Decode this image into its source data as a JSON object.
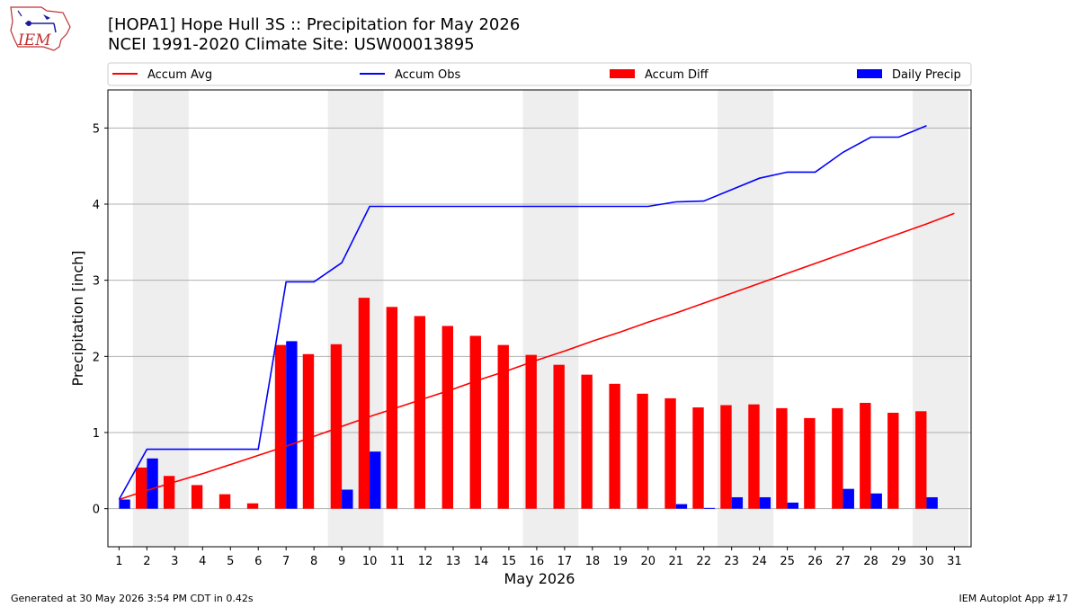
{
  "header": {
    "title_line1": "[HOPA1] Hope Hull 3S :: Precipitation for May 2026",
    "title_line2": "NCEI 1991-2020 Climate Site: USW00013895",
    "logo_text": "IEM"
  },
  "footer": {
    "left": "Generated at 30 May 2026 3:54 PM CDT in 0.42s",
    "right": "IEM Autoplot App #17"
  },
  "colors": {
    "accum_avg": "#ff0000",
    "accum_obs": "#0000ff",
    "accum_diff": "#ff0000",
    "daily_precip": "#0000ff",
    "weekend_band": "#eeeeee",
    "grid": "#b0b0b0"
  },
  "chart_data": {
    "type": "bar",
    "xlabel": "May 2026",
    "ylabel": "Precipitation [inch]",
    "xlim": [
      0.6,
      31.6
    ],
    "ylim": [
      -0.5,
      5.5
    ],
    "x_ticks": [
      1,
      2,
      3,
      4,
      5,
      6,
      7,
      8,
      9,
      10,
      11,
      12,
      13,
      14,
      15,
      16,
      17,
      18,
      19,
      20,
      21,
      22,
      23,
      24,
      25,
      26,
      27,
      28,
      29,
      30,
      31
    ],
    "y_ticks": [
      0,
      1,
      2,
      3,
      4,
      5
    ],
    "grid": "horizontal",
    "legend_placement": "top",
    "weekend_bands": [
      [
        1.5,
        3.5
      ],
      [
        8.5,
        10.5
      ],
      [
        15.5,
        17.5
      ],
      [
        22.5,
        24.5
      ],
      [
        29.5,
        31.5
      ]
    ],
    "legend": [
      {
        "label": "Accum Avg",
        "kind": "line",
        "color": "#ff0000"
      },
      {
        "label": "Accum Obs",
        "kind": "line",
        "color": "#0000ff"
      },
      {
        "label": "Accum Diff",
        "kind": "bar",
        "color": "#ff0000"
      },
      {
        "label": "Daily Precip",
        "kind": "bar",
        "color": "#0000ff"
      }
    ],
    "series": [
      {
        "name": "Accum Avg",
        "type": "line",
        "x": [
          1,
          2,
          3,
          4,
          5,
          6,
          7,
          8,
          9,
          10,
          11,
          12,
          13,
          14,
          15,
          16,
          17,
          18,
          19,
          20,
          21,
          22,
          23,
          24,
          25,
          26,
          27,
          28,
          29,
          30,
          31
        ],
        "values": [
          0.12,
          0.24,
          0.35,
          0.46,
          0.58,
          0.7,
          0.82,
          0.95,
          1.08,
          1.21,
          1.33,
          1.45,
          1.57,
          1.7,
          1.82,
          1.95,
          2.07,
          2.2,
          2.32,
          2.45,
          2.57,
          2.7,
          2.83,
          2.96,
          3.09,
          3.22,
          3.35,
          3.48,
          3.61,
          3.74,
          3.88
        ]
      },
      {
        "name": "Accum Obs",
        "type": "line",
        "x": [
          1,
          2,
          3,
          4,
          5,
          6,
          7,
          8,
          9,
          10,
          11,
          12,
          13,
          14,
          15,
          16,
          17,
          18,
          19,
          20,
          21,
          22,
          23,
          24,
          25,
          26,
          27,
          28,
          29,
          30
        ],
        "values": [
          0.12,
          0.78,
          0.78,
          0.78,
          0.78,
          0.78,
          2.98,
          2.98,
          3.23,
          3.97,
          3.97,
          3.97,
          3.97,
          3.97,
          3.97,
          3.97,
          3.97,
          3.97,
          3.97,
          3.97,
          4.03,
          4.04,
          4.19,
          4.34,
          4.42,
          4.42,
          4.68,
          4.88,
          4.88,
          5.03
        ]
      },
      {
        "name": "Accum Diff",
        "type": "bar",
        "x": [
          1,
          2,
          3,
          4,
          5,
          6,
          7,
          8,
          9,
          10,
          11,
          12,
          13,
          14,
          15,
          16,
          17,
          18,
          19,
          20,
          21,
          22,
          23,
          24,
          25,
          26,
          27,
          28,
          29,
          30
        ],
        "values": [
          0.0,
          0.54,
          0.43,
          0.31,
          0.19,
          0.07,
          2.15,
          2.03,
          2.16,
          2.77,
          2.65,
          2.53,
          2.4,
          2.27,
          2.15,
          2.02,
          1.89,
          1.76,
          1.64,
          1.51,
          1.45,
          1.33,
          1.36,
          1.37,
          1.32,
          1.19,
          1.32,
          1.39,
          1.26,
          1.28
        ]
      },
      {
        "name": "Daily Precip",
        "type": "bar",
        "x": [
          1,
          2,
          3,
          4,
          5,
          6,
          7,
          8,
          9,
          10,
          11,
          12,
          13,
          14,
          15,
          16,
          17,
          18,
          19,
          20,
          21,
          22,
          23,
          24,
          25,
          26,
          27,
          28,
          29,
          30
        ],
        "values": [
          0.12,
          0.66,
          0,
          0,
          0,
          0,
          2.2,
          0,
          0.25,
          0.75,
          0,
          0,
          0,
          0,
          0,
          0,
          0,
          0,
          0,
          0,
          0.06,
          0.01,
          0.15,
          0.15,
          0.08,
          0,
          0.26,
          0.2,
          0,
          0.15
        ]
      }
    ]
  }
}
